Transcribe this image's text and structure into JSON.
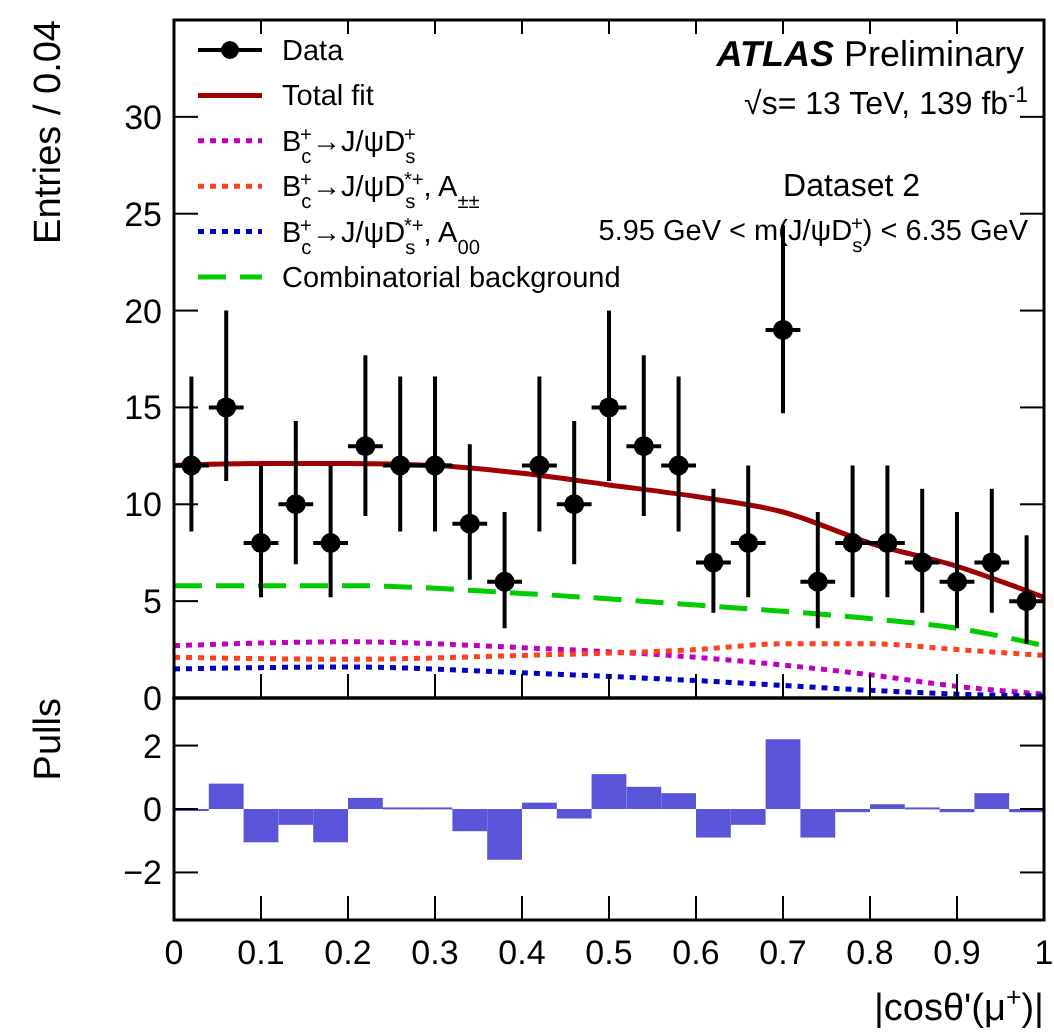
{
  "chart_data": [
    {
      "type": "scatter",
      "ylabel": "Entries / 0.04",
      "xlim": [
        0,
        1
      ],
      "ylim": [
        0,
        35
      ],
      "xticks": [
        {
          "value": 0,
          "label": null
        },
        {
          "value": 0.1,
          "label": null
        },
        {
          "value": 0.2,
          "label": null
        },
        {
          "value": 0.3,
          "label": null
        },
        {
          "value": 0.4,
          "label": null
        },
        {
          "value": 0.5,
          "label": null
        },
        {
          "value": 0.6,
          "label": null
        },
        {
          "value": 0.7,
          "label": null
        },
        {
          "value": 0.8,
          "label": null
        },
        {
          "value": 0.9,
          "label": null
        },
        {
          "value": 1,
          "label": null
        }
      ],
      "yticks": [
        0,
        5,
        10,
        15,
        20,
        25,
        30
      ],
      "tick_labels": "y",
      "legend": "top left",
      "grid": false,
      "annotations": [
        "ATLAS Preliminary",
        "√s= 13 TeV, 139 fb$^{-1}$",
        "Dataset 2",
        "5.95 GeV < m(J/ψD$_{s}$$^{+}$) < 6.35 GeV"
      ],
      "series": [
        {
          "name": "Data",
          "type": "scatter",
          "marker": "circle",
          "color": "#000000",
          "x": [
            0.02,
            0.06,
            0.1,
            0.14,
            0.18,
            0.22,
            0.26,
            0.3,
            0.34,
            0.38,
            0.42,
            0.46,
            0.5,
            0.54,
            0.58,
            0.62,
            0.66,
            0.7,
            0.74,
            0.78,
            0.82,
            0.86,
            0.9,
            0.94,
            0.98
          ],
          "values": [
            12,
            15,
            8,
            10,
            8,
            13,
            12,
            12,
            9,
            6,
            12,
            10,
            15,
            13,
            12,
            7,
            8,
            19,
            6,
            8,
            8,
            7,
            6,
            7,
            5
          ],
          "errors": [
            [
              8.6,
              16.6
            ],
            [
              11.2,
              20
            ],
            [
              5.2,
              12
            ],
            [
              6.9,
              14.3
            ],
            [
              5.2,
              12
            ],
            [
              9.4,
              17.7
            ],
            [
              8.6,
              16.6
            ],
            [
              8.6,
              16.6
            ],
            [
              6.1,
              13.1
            ],
            [
              3.6,
              9.6
            ],
            [
              8.6,
              16.6
            ],
            [
              6.9,
              14.3
            ],
            [
              11.2,
              20
            ],
            [
              9.4,
              17.7
            ],
            [
              8.6,
              16.6
            ],
            [
              4.4,
              10.8
            ],
            [
              5.2,
              12
            ],
            [
              14.7,
              24.4
            ],
            [
              3.6,
              9.6
            ],
            [
              5.2,
              12
            ],
            [
              5.2,
              12
            ],
            [
              4.4,
              10.8
            ],
            [
              3.6,
              9.6
            ],
            [
              4.4,
              10.8
            ],
            [
              2.8,
              8.4
            ]
          ],
          "xerrors": [
            0.02,
            0.02,
            0.02,
            0.02,
            0.02,
            0.02,
            0.02,
            0.02,
            0.02,
            0.02,
            0.02,
            0.02,
            0.02,
            0.02,
            0.02,
            0.02,
            0.02,
            0.02,
            0.02,
            0.02,
            0.02,
            0.02,
            0.02,
            0.02,
            0.02
          ]
        },
        {
          "name": "Total fit",
          "type": "line",
          "line_style": "solid",
          "color": "#a00000",
          "x": [
            0,
            0.1,
            0.2,
            0.3,
            0.4,
            0.5,
            0.6,
            0.7,
            0.8,
            0.9,
            1
          ],
          "values": [
            12,
            12.1,
            12.1,
            12,
            11.6,
            11,
            10.4,
            9.6,
            8,
            6.8,
            5.2
          ]
        },
        {
          "name": "B$_{c}$$^{+}$→J/ψD$_{s}$$^{+}$",
          "type": "line",
          "line_style": "dotted",
          "color": "#c000c0",
          "x": [
            0,
            0.2,
            0.4,
            0.6,
            0.8,
            0.9,
            1
          ],
          "values": [
            2.7,
            2.9,
            2.6,
            2.1,
            1.2,
            0.6,
            0.2
          ]
        },
        {
          "name": "B$_{c}$$^{+}$→J/ψD$_{s}$$^{*+}$, A$_{±±}$",
          "type": "line",
          "line_style": "dotted",
          "color": "#ff4020",
          "x": [
            0,
            0.2,
            0.4,
            0.6,
            0.7,
            0.8,
            0.9,
            1
          ],
          "values": [
            2.1,
            2.0,
            2.2,
            2.5,
            2.8,
            2.8,
            2.5,
            2.2
          ]
        },
        {
          "name": "B$_{c}$$^{+}$→J/ψD$_{s}$$^{*+}$, A$_{00}$",
          "type": "line",
          "line_style": "dotted",
          "color": "#0000c8",
          "x": [
            0,
            0.2,
            0.4,
            0.6,
            0.8,
            0.9,
            1
          ],
          "values": [
            1.5,
            1.6,
            1.3,
            0.9,
            0.4,
            0.2,
            0.1
          ]
        },
        {
          "name": "Combinatorial background",
          "type": "line",
          "line_style": "dashed",
          "color": "#00cc00",
          "x": [
            0,
            0.2,
            0.4,
            0.6,
            0.8,
            0.9,
            1
          ],
          "values": [
            5.8,
            5.8,
            5.4,
            4.8,
            4.1,
            3.6,
            2.7
          ]
        }
      ]
    },
    {
      "type": "histogram",
      "ylabel": "Pulls",
      "xlabel": "|cosθ'(μ$^{+}$)|",
      "xlim": [
        0,
        1
      ],
      "ylim": [
        -3.5,
        3.5
      ],
      "xticks": [
        0,
        0.1,
        0.2,
        0.3,
        0.4,
        0.5,
        0.6,
        0.7,
        0.8,
        0.9,
        1
      ],
      "yticks": [
        {
          "value": -2,
          "label": "−2"
        },
        0,
        2
      ],
      "grid": false,
      "color": "#5a55d8",
      "bins": [
        0,
        0.04,
        0.08,
        0.12,
        0.16,
        0.2,
        0.24,
        0.28,
        0.32,
        0.36,
        0.4,
        0.44,
        0.48,
        0.52,
        0.56,
        0.6,
        0.64,
        0.68,
        0.72,
        0.76,
        0.8,
        0.84,
        0.88,
        0.92,
        0.96,
        1
      ],
      "values": [
        0,
        0.8,
        -1.05,
        -0.5,
        -1.05,
        0.35,
        0.05,
        0.05,
        -0.7,
        -1.6,
        0.2,
        -0.3,
        1.1,
        0.7,
        0.5,
        -0.9,
        -0.5,
        2.2,
        -0.9,
        -0.1,
        0.15,
        0.05,
        -0.1,
        0.5,
        -0.1
      ]
    }
  ]
}
